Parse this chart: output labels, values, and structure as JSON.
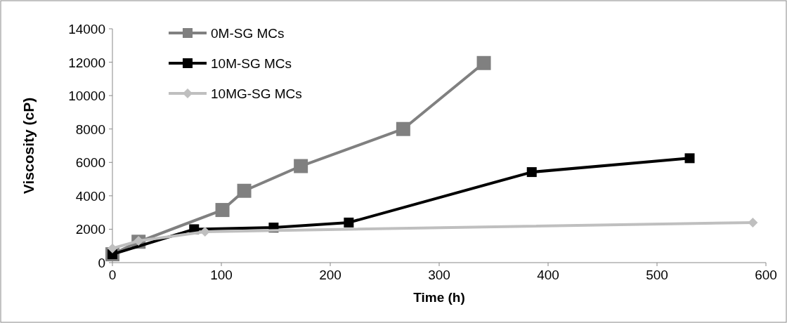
{
  "chart_data": {
    "type": "line",
    "xlabel": "Time (h)",
    "ylabel": "Viscosity (cP)",
    "xlim": [
      0,
      600
    ],
    "xticks": [
      0,
      100,
      200,
      300,
      400,
      500,
      600
    ],
    "ylim": [
      0,
      14000
    ],
    "yticks": [
      0,
      2000,
      4000,
      6000,
      8000,
      10000,
      12000,
      14000
    ],
    "grid": false,
    "legend": "top left",
    "line_style": "solid",
    "series": [
      {
        "name": "0M-SG MCs",
        "color": "#808080",
        "marker": "square",
        "x": [
          0,
          24,
          101,
          121,
          173,
          267,
          341
        ],
        "values": [
          500,
          1250,
          3150,
          4300,
          5780,
          8000,
          11950
        ]
      },
      {
        "name": "10M-SG MCs",
        "color": "#000000",
        "marker": "square",
        "x": [
          0,
          75,
          148,
          217,
          385,
          530
        ],
        "values": [
          500,
          2000,
          2100,
          2400,
          5420,
          6250
        ]
      },
      {
        "name": "10MG-SG MCs",
        "color": "#bfbfbf",
        "marker": "diamond",
        "x": [
          0,
          24,
          85,
          588
        ],
        "values": [
          850,
          1300,
          1850,
          2400
        ]
      }
    ]
  }
}
